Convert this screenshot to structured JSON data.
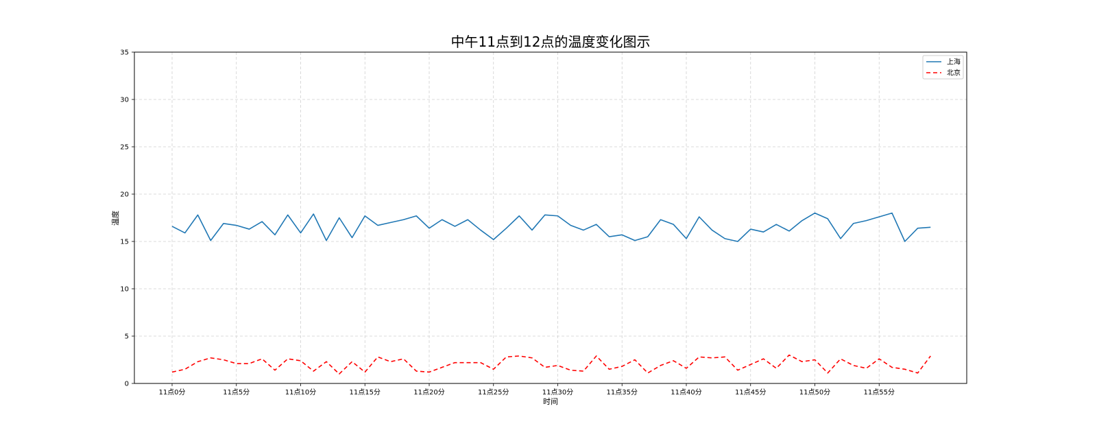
{
  "chart_data": {
    "type": "line",
    "title": "中午11点到12点的温度变化图示",
    "xlabel": "时间",
    "ylabel": "温度",
    "ylim": [
      0,
      35
    ],
    "yticks": [
      0,
      5,
      10,
      15,
      20,
      25,
      30,
      35
    ],
    "x": [
      0,
      1,
      2,
      3,
      4,
      5,
      6,
      7,
      8,
      9,
      10,
      11,
      12,
      13,
      14,
      15,
      16,
      17,
      18,
      19,
      20,
      21,
      22,
      23,
      24,
      25,
      26,
      27,
      28,
      29,
      30,
      31,
      32,
      33,
      34,
      35,
      36,
      37,
      38,
      39,
      40,
      41,
      42,
      43,
      44,
      45,
      46,
      47,
      48,
      49,
      50,
      51,
      52,
      53,
      54,
      55,
      56,
      57,
      58,
      59
    ],
    "xticks": [
      0,
      5,
      10,
      15,
      20,
      25,
      30,
      35,
      40,
      45,
      50,
      55
    ],
    "xtick_labels": [
      "11点0分",
      "11点5分",
      "11点10分",
      "11点15分",
      "11点20分",
      "11点25分",
      "11点30分",
      "11点35分",
      "11点40分",
      "11点45分",
      "11点50分",
      "11点55分"
    ],
    "grid": true,
    "legend_position": "top-right",
    "series": [
      {
        "name": "上海",
        "color": "#1f77b4",
        "linestyle": "solid",
        "values": [
          16.6,
          15.9,
          17.8,
          15.1,
          16.9,
          16.7,
          16.3,
          17.1,
          15.7,
          17.8,
          15.9,
          17.9,
          15.1,
          17.5,
          15.4,
          17.7,
          16.7,
          17.0,
          17.3,
          17.7,
          16.4,
          17.3,
          16.6,
          17.3,
          16.2,
          15.2,
          16.4,
          17.7,
          16.2,
          17.8,
          17.7,
          16.7,
          16.2,
          16.8,
          15.5,
          15.7,
          15.1,
          15.5,
          17.3,
          16.8,
          15.3,
          17.6,
          16.2,
          15.3,
          15.0,
          16.3,
          16.0,
          16.8,
          16.1,
          17.2,
          18.0,
          17.4,
          15.3,
          16.9,
          17.2,
          17.6,
          18.0,
          15.0,
          16.4,
          16.5
        ]
      },
      {
        "name": "北京",
        "color": "#ff0000",
        "linestyle": "dashed",
        "values": [
          1.2,
          1.5,
          2.3,
          2.7,
          2.5,
          2.1,
          2.1,
          2.6,
          1.4,
          2.6,
          2.4,
          1.3,
          2.3,
          1.0,
          2.3,
          1.2,
          2.8,
          2.3,
          2.6,
          1.3,
          1.2,
          1.7,
          2.2,
          2.2,
          2.2,
          1.5,
          2.8,
          2.9,
          2.7,
          1.7,
          1.9,
          1.4,
          1.3,
          2.9,
          1.5,
          1.8,
          2.5,
          1.1,
          1.9,
          2.4,
          1.6,
          2.8,
          2.7,
          2.8,
          1.4,
          2.0,
          2.6,
          1.6,
          3.0,
          2.3,
          2.5,
          1.1,
          2.6,
          1.9,
          1.6,
          2.6,
          1.7,
          1.5,
          1.1,
          2.9
        ]
      }
    ]
  }
}
